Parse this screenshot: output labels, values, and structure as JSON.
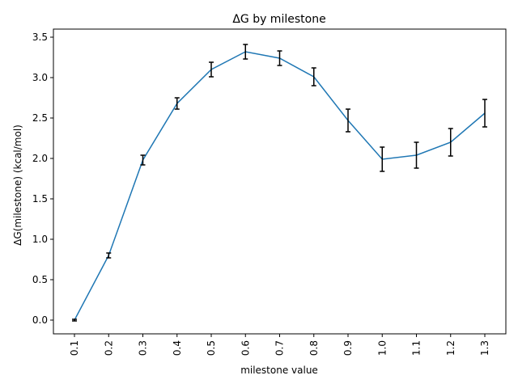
{
  "chart_data": {
    "type": "line",
    "title": "ΔG by milestone",
    "xlabel": "milestone value",
    "ylabel": "ΔG(milestone) (kcal/mol)",
    "categories": [
      "0.1",
      "0.2",
      "0.3",
      "0.4",
      "0.5",
      "0.6",
      "0.7",
      "0.8",
      "0.9",
      "1.0",
      "1.1",
      "1.2",
      "1.3"
    ],
    "series": [
      {
        "values": [
          0.0,
          0.8,
          1.98,
          2.68,
          3.1,
          3.32,
          3.24,
          3.01,
          2.47,
          1.99,
          2.04,
          2.2,
          2.56
        ],
        "errors": [
          0.01,
          0.03,
          0.06,
          0.07,
          0.09,
          0.09,
          0.09,
          0.11,
          0.14,
          0.15,
          0.16,
          0.17,
          0.17
        ],
        "color": "#1f77b4"
      }
    ],
    "ylim": [
      -0.17,
      3.6
    ],
    "yticks": [
      "0.0",
      "0.5",
      "1.0",
      "1.5",
      "2.0",
      "2.5",
      "3.0",
      "3.5"
    ],
    "grid": false,
    "legend": "none",
    "errorbar_color": "#000000"
  }
}
